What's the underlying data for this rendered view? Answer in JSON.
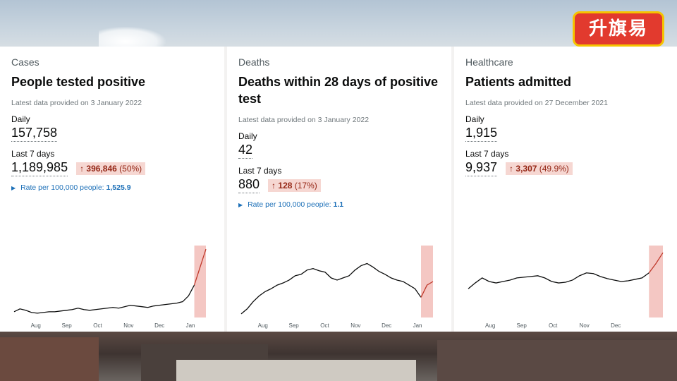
{
  "logo_text": "升旗易",
  "cards": [
    {
      "category": "Cases",
      "title": "People tested positive",
      "latest": "Latest data provided on 3 January 2022",
      "daily_label": "Daily",
      "daily_value": "157,758",
      "last7_label": "Last 7 days",
      "last7_value": "1,189,985",
      "change_value": "396,846",
      "change_pct": "(50%)",
      "rate_label": "Rate per 100,000 people:",
      "rate_value": "1,525.9",
      "x_ticks": [
        "Aug",
        "Sep",
        "Oct",
        "Nov",
        "Dec",
        "Jan"
      ]
    },
    {
      "category": "Deaths",
      "title": "Deaths within 28 days of positive test",
      "latest": "Latest data provided on 3 January 2022",
      "daily_label": "Daily",
      "daily_value": "42",
      "last7_label": "Last 7 days",
      "last7_value": "880",
      "change_value": "128",
      "change_pct": "(17%)",
      "rate_label": "Rate per 100,000 people:",
      "rate_value": "1.1",
      "x_ticks": [
        "Aug",
        "Sep",
        "Oct",
        "Nov",
        "Dec",
        "Jan"
      ]
    },
    {
      "category": "Healthcare",
      "title": "Patients admitted",
      "latest": "Latest data provided on 27 December 2021",
      "daily_label": "Daily",
      "daily_value": "1,915",
      "last7_label": "Last 7 days",
      "last7_value": "9,937",
      "change_value": "3,307",
      "change_pct": "(49.9%)",
      "x_ticks": [
        "Aug",
        "Sep",
        "Oct",
        "Nov",
        "Dec"
      ]
    }
  ],
  "colors": {
    "line": "#0b0c0c",
    "recent_line": "#c0392b",
    "recent_fill": "#f4c7c3",
    "change_bg": "#f6d7d2",
    "change_text": "#942514",
    "link": "#1d70b8"
  },
  "chart_data": [
    {
      "type": "line",
      "series": [
        {
          "values": [
            8,
            12,
            10,
            7,
            6,
            7,
            8,
            8,
            9,
            10,
            11,
            13,
            11,
            10,
            11,
            12,
            13,
            14,
            13,
            15,
            17,
            16,
            15,
            14,
            16,
            17,
            18,
            19,
            20,
            22,
            30,
            45,
            70,
            95
          ]
        }
      ],
      "highlight_last_n": 3
    },
    {
      "type": "line",
      "series": [
        {
          "values": [
            5,
            12,
            22,
            30,
            36,
            40,
            45,
            48,
            52,
            58,
            60,
            66,
            68,
            65,
            63,
            55,
            52,
            55,
            58,
            66,
            72,
            75,
            70,
            64,
            60,
            55,
            52,
            50,
            45,
            40,
            28,
            45,
            50
          ]
        }
      ],
      "highlight_last_n": 3
    },
    {
      "type": "line",
      "series": [
        {
          "values": [
            40,
            48,
            55,
            50,
            48,
            50,
            52,
            55,
            56,
            57,
            58,
            55,
            50,
            48,
            49,
            52,
            58,
            62,
            61,
            57,
            54,
            52,
            50,
            51,
            53,
            55,
            62,
            75,
            90
          ]
        }
      ],
      "highlight_last_n": 3
    }
  ]
}
